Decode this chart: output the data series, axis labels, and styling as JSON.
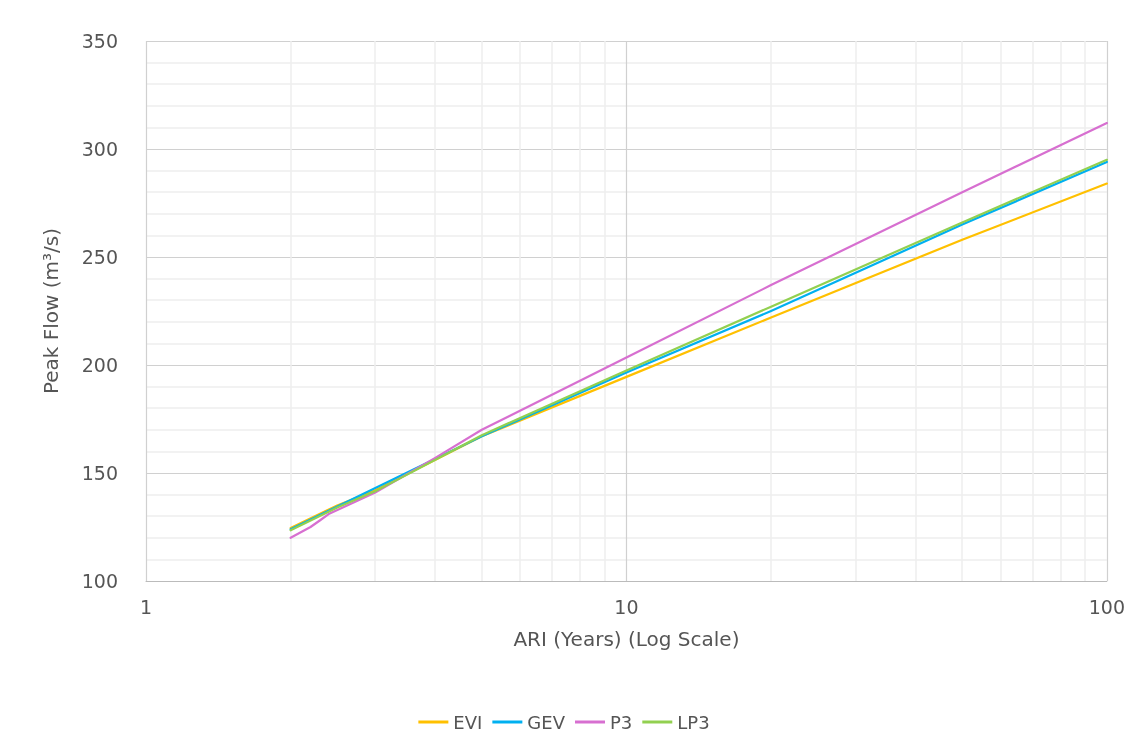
{
  "chart_data": {
    "type": "line",
    "xlabel": "ARI (Years) (Log Scale)",
    "ylabel": "Peak Flow (m³/s)",
    "log": "x",
    "xlim": [
      1,
      100
    ],
    "xticks": [
      1,
      10,
      100
    ],
    "ylim": [
      100,
      350
    ],
    "yticks": [
      100,
      150,
      200,
      250,
      300,
      350
    ],
    "grid": true,
    "legend": "bottom",
    "marker": "none",
    "line_style": "solid",
    "series": [
      {
        "name": "EVI",
        "color": "#ffc000",
        "x": [
          2,
          2.5,
          3,
          5,
          10,
          20,
          50,
          100
        ],
        "values": [
          124.5,
          135,
          142,
          167,
          194.5,
          222,
          258,
          284
        ]
      },
      {
        "name": "GEV",
        "color": "#00b0f0",
        "x": [
          2,
          5,
          10,
          20,
          50,
          100
        ],
        "values": [
          124,
          167,
          196.5,
          225,
          265,
          294
        ]
      },
      {
        "name": "P3",
        "color": "#d76fd0",
        "x": [
          2,
          2.2,
          2.3,
          2.4,
          3,
          4,
          5,
          10,
          20,
          50,
          100
        ],
        "values": [
          120,
          125,
          128,
          131,
          141,
          157,
          170,
          203.5,
          237,
          280,
          312
        ]
      },
      {
        "name": "LP3",
        "color": "#92d050",
        "x": [
          2,
          2.5,
          3,
          5,
          10,
          20,
          50,
          100
        ],
        "values": [
          123.5,
          134,
          141.5,
          167.5,
          197.5,
          227,
          266,
          295
        ]
      }
    ]
  }
}
